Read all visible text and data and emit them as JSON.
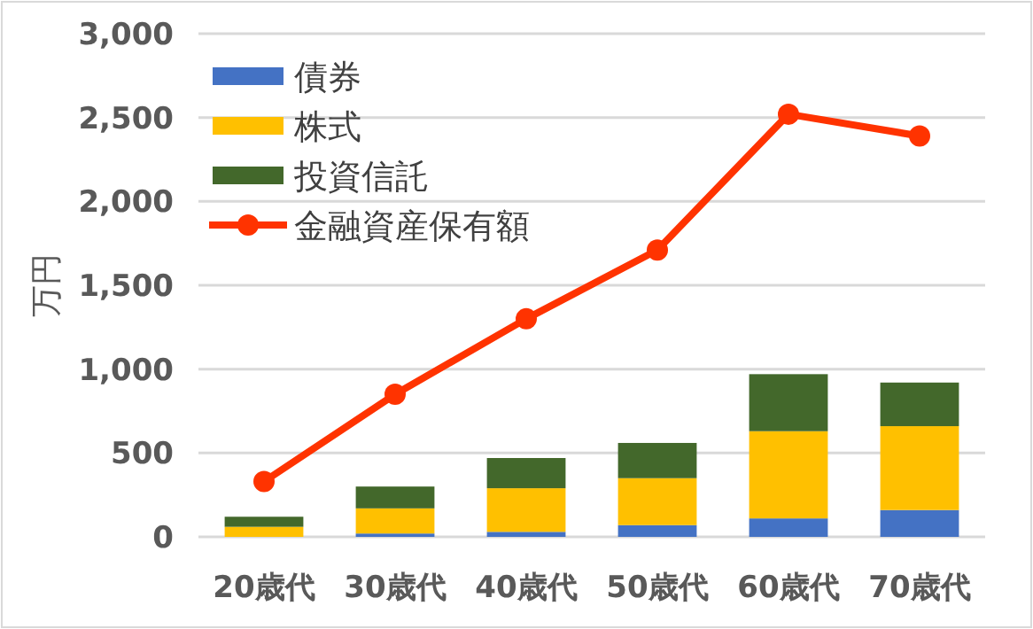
{
  "chart_data": {
    "type": "bar",
    "stacked": true,
    "ylabel": "万円",
    "categories": [
      "20歳代",
      "30歳代",
      "40歳代",
      "50歳代",
      "60歳代",
      "70歳代"
    ],
    "series": [
      {
        "name": "債券",
        "color": "#4472c4",
        "values": [
          null,
          20,
          30,
          70,
          110,
          160
        ]
      },
      {
        "name": "株式",
        "color": "#ffc000",
        "values": [
          60,
          150,
          260,
          280,
          520,
          500
        ]
      },
      {
        "name": "投資信託",
        "color": "#43682b",
        "values": [
          60,
          130,
          180,
          210,
          340,
          260
        ]
      },
      {
        "name": "金融資産保有額",
        "type": "line",
        "color": "#ff3300",
        "marker": "circle",
        "line_style": "solid",
        "values": [
          330,
          850,
          1300,
          1710,
          2520,
          2390
        ]
      }
    ],
    "ylim": [
      0,
      3000
    ],
    "yticks": [
      {
        "value": 0,
        "label": "0"
      },
      {
        "value": 500,
        "label": "500"
      },
      {
        "value": 1000,
        "label": "1,000"
      },
      {
        "value": 1500,
        "label": "1,500"
      },
      {
        "value": 2000,
        "label": "2,000"
      },
      {
        "value": 2500,
        "label": "2,500"
      },
      {
        "value": 3000,
        "label": "3,000"
      }
    ],
    "grid": "y",
    "legend": "top left"
  }
}
